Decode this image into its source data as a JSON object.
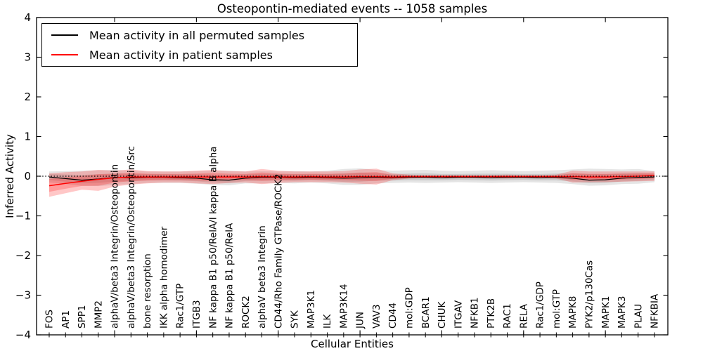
{
  "title": "Osteopontin-mediated events -- 1058 samples",
  "legend": {
    "items": [
      {
        "label": "Mean activity in all permuted samples",
        "color": "#000000"
      },
      {
        "label": "Mean activity in patient samples",
        "color": "#ff0000"
      }
    ]
  },
  "chart_data": {
    "type": "line",
    "title": "Osteopontin-mediated events -- 1058 samples",
    "xlabel": "Cellular Entities",
    "ylabel": "Inferred Activity",
    "ylim": [
      -4,
      4
    ],
    "grid": false,
    "legend_position": "upper left",
    "zero_line": {
      "style": "dotted",
      "color": "#000000",
      "value": 0
    },
    "yticks": [
      {
        "value": 4,
        "label": "4"
      },
      {
        "value": 3,
        "label": "3"
      },
      {
        "value": 2,
        "label": "2"
      },
      {
        "value": 1,
        "label": "1"
      },
      {
        "value": 0,
        "label": "0"
      },
      {
        "value": -1,
        "label": "−1"
      },
      {
        "value": -2,
        "label": "−2"
      },
      {
        "value": -3,
        "label": "−3"
      },
      {
        "value": -4,
        "label": "−4"
      }
    ],
    "top_axis_tick_positions": [
      5,
      10,
      15,
      20,
      25,
      30,
      35
    ],
    "categories": [
      "FOS",
      "AP1",
      "SPP1",
      "MMP2",
      "alphaV/beta3 Integrin/Osteopontin",
      "alphaV/beta3 Integrin/Osteopontin/Src",
      "bone resorption",
      "IKK alpha homodimer",
      "Rac1/GTP",
      "ITGB3",
      "NF kappa B1 p50/RelA/I kappa B alpha",
      "NF kappa B1 p50/RelA",
      "ROCK2",
      "alphaV beta3 Integrin",
      "CD44/Rho Family GTPase/ROCK2",
      "SYK",
      "MAP3K1",
      "ILK",
      "MAP3K14",
      "JUN",
      "VAV3",
      "CD44",
      "mol:GDP",
      "BCAR1",
      "CHUK",
      "ITGAV",
      "NFKB1",
      "PTK2B",
      "RAC1",
      "RELA",
      "Rac1/GDP",
      "mol:GTP",
      "MAPK8",
      "PYK2/p130Cas",
      "MAPK1",
      "MAPK3",
      "PLAU",
      "NFKBIA"
    ],
    "series": [
      {
        "name": "Mean activity in all permuted samples",
        "color": "#000000",
        "line_width": 1.2,
        "band_fill": "rgba(0,0,0,0.10)",
        "values": [
          -0.02,
          -0.06,
          -0.1,
          -0.07,
          -0.03,
          -0.04,
          -0.03,
          -0.03,
          -0.04,
          -0.05,
          -0.09,
          -0.1,
          -0.05,
          -0.03,
          -0.03,
          -0.04,
          -0.03,
          -0.04,
          -0.05,
          -0.04,
          -0.03,
          -0.04,
          -0.03,
          -0.03,
          -0.04,
          -0.03,
          -0.03,
          -0.04,
          -0.03,
          -0.03,
          -0.04,
          -0.03,
          -0.05,
          -0.1,
          -0.09,
          -0.05,
          -0.03,
          -0.02
        ],
        "band_upper": [
          0.12,
          0.13,
          0.14,
          0.15,
          0.16,
          0.14,
          0.12,
          0.12,
          0.12,
          0.13,
          0.14,
          0.14,
          0.12,
          0.13,
          0.12,
          0.13,
          0.12,
          0.14,
          0.18,
          0.2,
          0.16,
          0.14,
          0.15,
          0.16,
          0.14,
          0.13,
          0.14,
          0.15,
          0.14,
          0.13,
          0.14,
          0.15,
          0.17,
          0.19,
          0.18,
          0.17,
          0.18,
          0.13
        ],
        "band_lower": [
          -0.16,
          -0.2,
          -0.24,
          -0.25,
          -0.22,
          -0.2,
          -0.17,
          -0.17,
          -0.17,
          -0.19,
          -0.22,
          -0.23,
          -0.18,
          -0.18,
          -0.17,
          -0.18,
          -0.16,
          -0.18,
          -0.22,
          -0.22,
          -0.18,
          -0.17,
          -0.16,
          -0.17,
          -0.16,
          -0.15,
          -0.16,
          -0.17,
          -0.16,
          -0.15,
          -0.16,
          -0.17,
          -0.2,
          -0.24,
          -0.23,
          -0.2,
          -0.19,
          -0.15
        ]
      },
      {
        "name": "Mean activity in patient samples",
        "color": "#ff0000",
        "line_width": 1.5,
        "band_fill": "rgba(255,0,0,0.22)",
        "values": [
          -0.24,
          -0.18,
          -0.13,
          -0.08,
          -0.04,
          -0.02,
          -0.02,
          -0.02,
          -0.02,
          -0.02,
          -0.02,
          -0.02,
          -0.02,
          -0.01,
          -0.02,
          -0.02,
          -0.01,
          -0.02,
          -0.02,
          -0.01,
          -0.01,
          -0.02,
          -0.01,
          -0.01,
          -0.01,
          -0.01,
          -0.01,
          -0.01,
          -0.01,
          -0.01,
          -0.01,
          -0.01,
          -0.01,
          -0.02,
          -0.02,
          -0.01,
          0.0,
          0.02
        ],
        "band_upper": [
          0.07,
          0.1,
          0.12,
          0.16,
          0.14,
          0.17,
          0.13,
          0.12,
          0.12,
          0.14,
          0.16,
          0.13,
          0.12,
          0.18,
          0.14,
          0.12,
          0.12,
          0.12,
          0.13,
          0.17,
          0.19,
          0.07,
          0.04,
          0.03,
          0.03,
          0.03,
          0.03,
          0.03,
          0.04,
          0.03,
          0.03,
          0.04,
          0.14,
          0.12,
          0.12,
          0.12,
          0.12,
          0.12
        ],
        "band_lower": [
          -0.52,
          -0.43,
          -0.34,
          -0.37,
          -0.26,
          -0.21,
          -0.18,
          -0.16,
          -0.16,
          -0.18,
          -0.2,
          -0.17,
          -0.16,
          -0.2,
          -0.17,
          -0.15,
          -0.15,
          -0.15,
          -0.16,
          -0.19,
          -0.21,
          -0.1,
          -0.06,
          -0.05,
          -0.05,
          -0.05,
          -0.05,
          -0.05,
          -0.06,
          -0.05,
          -0.05,
          -0.06,
          -0.16,
          -0.15,
          -0.15,
          -0.14,
          -0.13,
          -0.12
        ]
      }
    ]
  }
}
